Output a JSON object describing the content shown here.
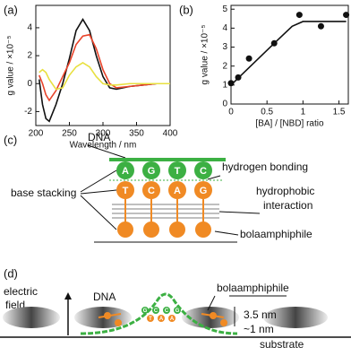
{
  "chart_data": [
    {
      "type": "line",
      "panel": "(a)",
      "x_label": "Wavelength / nm",
      "y_label": "g value / ×10⁻⁵",
      "x": [
        205,
        210,
        215,
        220,
        230,
        240,
        250,
        260,
        270,
        280,
        290,
        300,
        310,
        320,
        340,
        360,
        380,
        400
      ],
      "series": [
        {
          "color": "#111111",
          "values": [
            0.3,
            -1.5,
            -2.5,
            -2.7,
            -1.5,
            0,
            1.8,
            3.8,
            4.6,
            3.8,
            2.0,
            0.5,
            -0.3,
            -0.4,
            -0.2,
            -0.1,
            0,
            0
          ]
        },
        {
          "color": "#e8432a",
          "values": [
            0.6,
            0,
            -0.8,
            -1.2,
            -0.5,
            0.5,
            1.5,
            2.8,
            3.4,
            3.5,
            2.5,
            1.0,
            0,
            -0.3,
            -0.2,
            -0.1,
            0,
            0
          ]
        },
        {
          "color": "#e8e040",
          "values": [
            0.8,
            1.0,
            0.8,
            0.3,
            -0.4,
            -0.3,
            0.6,
            1.2,
            1.5,
            1.2,
            0.5,
            0,
            -0.1,
            -0.1,
            0,
            0,
            0,
            0
          ]
        }
      ],
      "xlim": [
        200,
        400
      ],
      "xticks": [
        200,
        250,
        300,
        350,
        400
      ],
      "ylim": [
        -3,
        5.6
      ],
      "yticks": [
        -2,
        0,
        2,
        4
      ]
    },
    {
      "type": "scatter",
      "panel": "(b)",
      "x_label": "[BA] / [NBD] ratio",
      "y_label": "g value / ×10⁻⁵",
      "series": [
        {
          "color": "#111111",
          "x": [
            0,
            0.1,
            0.25,
            0.6,
            0.95,
            1.25,
            1.6
          ],
          "values": [
            1.1,
            1.4,
            2.4,
            3.2,
            4.7,
            4.1,
            4.7
          ]
        },
        {
          "type": "line",
          "color": "#111111",
          "x": [
            0,
            0.3,
            0.6,
            0.85,
            1.0,
            1.6
          ],
          "values": [
            1.0,
            2.1,
            3.2,
            4.1,
            4.35,
            4.35
          ]
        }
      ],
      "xlim": [
        0,
        1.63
      ],
      "xticks": [
        0,
        0.5,
        1,
        1.5
      ],
      "ylim": [
        0,
        5.2
      ],
      "yticks": [
        0,
        1,
        2,
        3,
        4,
        5
      ]
    }
  ],
  "diagram_c": {
    "panel": "(c)",
    "dna": "DNA",
    "hydrogen_bonding": "hydrogen bonding",
    "base_stacking": "base stacking",
    "hydrophobic": [
      "hydrophobic",
      "interaction"
    ],
    "bolaamphiphile": "bolaamphiphile",
    "top_bases": [
      "A",
      "G",
      "T",
      "C"
    ],
    "bottom_bases": [
      "T",
      "C",
      "A",
      "G"
    ]
  },
  "diagram_d": {
    "panel": "(d)",
    "electric_field": [
      "electric",
      "field"
    ],
    "dna": "DNA",
    "bolaamphiphile": "bolaamphiphile",
    "height_high": "3.5 nm",
    "height_low": "~1 nm",
    "substrate": "substrate",
    "bases": [
      "G",
      "T",
      "C",
      "A",
      "C",
      "A",
      "G"
    ]
  }
}
